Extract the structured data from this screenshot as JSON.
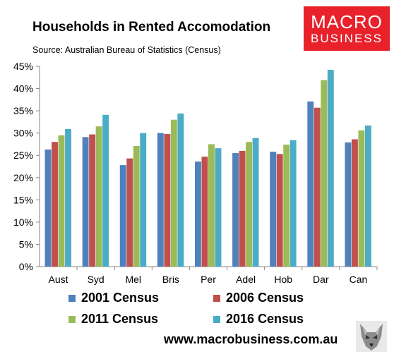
{
  "header": {
    "title": "Households in Rented Accomodation",
    "source": "Source: Australian Bureau of Statistics (Census)"
  },
  "logo": {
    "line1": "MACRO",
    "line2": "BUSINESS"
  },
  "footer": {
    "website": "www.macrobusiness.com.au"
  },
  "colors": {
    "s2001": "#4f81bd",
    "s2006": "#c0504d",
    "s2011": "#9bbb59",
    "s2016": "#4bacc6",
    "logo_bg": "#e8212b"
  },
  "chart_data": {
    "type": "bar",
    "title": "Households in Rented Accomodation",
    "subtitle": "Source: Australian Bureau of Statistics (Census)",
    "categories": [
      "Aust",
      "Syd",
      "Mel",
      "Bris",
      "Per",
      "Adel",
      "Hob",
      "Dar",
      "Can"
    ],
    "series": [
      {
        "name": "2001 Census",
        "values": [
          26.3,
          29.1,
          22.8,
          30.0,
          23.6,
          25.5,
          25.8,
          37.1,
          27.9
        ]
      },
      {
        "name": "2006 Census",
        "values": [
          28.0,
          29.7,
          24.3,
          29.8,
          24.7,
          26.0,
          25.3,
          35.7,
          28.6
        ]
      },
      {
        "name": "2011 Census",
        "values": [
          29.5,
          31.5,
          27.1,
          33.0,
          27.5,
          28.0,
          27.4,
          41.9,
          30.6
        ]
      },
      {
        "name": "2016 Census",
        "values": [
          30.9,
          34.1,
          30.0,
          34.4,
          26.6,
          28.9,
          28.4,
          44.2,
          31.7
        ]
      }
    ],
    "ylim": [
      0,
      45
    ],
    "yticks": [
      "0%",
      "5%",
      "10%",
      "15%",
      "20%",
      "25%",
      "30%",
      "35%",
      "40%",
      "45%"
    ],
    "grid": false,
    "legend": "bottom"
  }
}
